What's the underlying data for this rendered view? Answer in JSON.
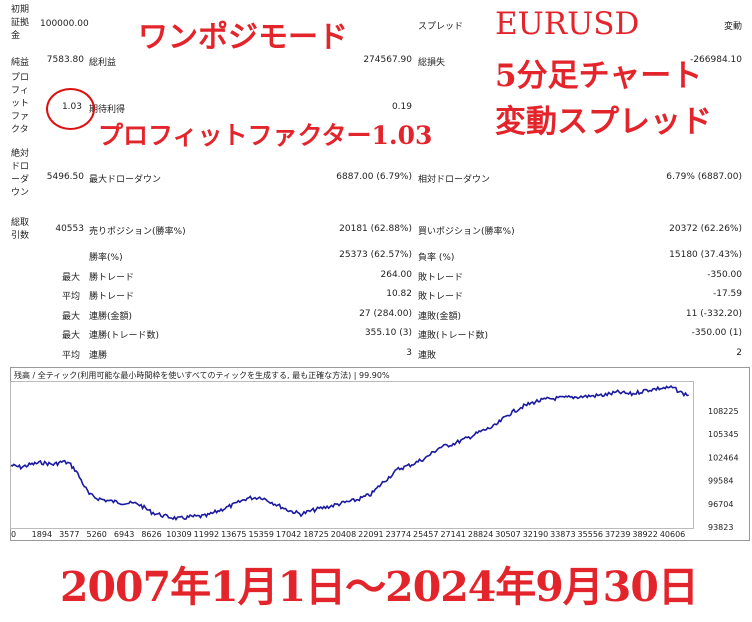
{
  "report": {
    "initial_deposit_label": "初期\n証拠\n金",
    "initial_deposit_value": "100000.00",
    "spread_label": "スプレッド",
    "spread_value": "変動",
    "net_profit_label": "純益",
    "net_profit_value": "7583.80",
    "gross_profit_label": "総利益",
    "gross_profit_value": "274567.90",
    "gross_loss_label": "総損失",
    "gross_loss_value": "-266984.10",
    "profit_factor_label": "プロ\nフィ\nット\nファ\nクタ",
    "profit_factor_value": "1.03",
    "expected_payoff_label": "期待利得",
    "expected_payoff_value": "0.19",
    "abs_drawdown_label": "絶対\nドロ\nーダ\nウン",
    "abs_drawdown_value": "5496.50",
    "max_drawdown_label": "最大ドローダウン",
    "max_drawdown_value": "6887.00 (6.79%)",
    "rel_drawdown_label": "相対ドローダウン",
    "rel_drawdown_value": "6.79% (6887.00)",
    "total_trades_label": "総取\n引数",
    "total_trades_value": "40553",
    "short_label": "売りポジション(勝率%)",
    "short_value": "20181 (62.88%)",
    "long_label": "買いポジション(勝率%)",
    "long_value": "20372 (62.26%)",
    "win_rate_label": "勝率(%)",
    "win_rate_value": "25373 (62.57%)",
    "loss_rate_label": "負率 (%)",
    "loss_rate_value": "15180 (37.43%)",
    "rows": [
      {
        "prefix": "最大",
        "left_label": "勝トレード",
        "left_value": "264.00",
        "right_label": "敗トレード",
        "right_value": "-350.00"
      },
      {
        "prefix": "平均",
        "left_label": "勝トレード",
        "left_value": "10.82",
        "right_label": "敗トレード",
        "right_value": "-17.59"
      },
      {
        "prefix": "最大",
        "left_label": "連勝(金額)",
        "left_value": "27 (284.00)",
        "right_label": "連敗(金額)",
        "right_value": "11 (-332.20)"
      },
      {
        "prefix": "最大",
        "left_label": "連勝(トレード数)",
        "left_value": "355.10 (3)",
        "right_label": "連敗(トレード数)",
        "right_value": "-350.00 (1)"
      },
      {
        "prefix": "平均",
        "left_label": "連勝",
        "left_value": "3",
        "right_label": "連敗",
        "right_value": "2"
      }
    ]
  },
  "overlay": {
    "mode": "ワンポジモード",
    "symbol": "EURUSD",
    "timeframe": "5分足チャート",
    "spread_type": "変動スプレッド",
    "pf_text": "プロフィットファクター1.03",
    "period": "2007年1月1日～2024年9月30日",
    "accent_color": "#e3242b"
  },
  "chart_data": {
    "type": "line",
    "title": "残高 / 全ティック(利用可能な最小時間枠を使いすべてのティックを生成する, 最も正確な方法) | 99.90%",
    "series_color": "#1a1aa0",
    "x_ticks": [
      "0",
      "1894",
      "3577",
      "5260",
      "6943",
      "8626",
      "10309",
      "11992",
      "13675",
      "15359",
      "17042",
      "18725",
      "20408",
      "22091",
      "23774",
      "25457",
      "27141",
      "28824",
      "30507",
      "32190",
      "33873",
      "35556",
      "37239",
      "38922",
      "40606"
    ],
    "y_ticks": [
      "108225",
      "105345",
      "102464",
      "99584",
      "96704",
      "93823"
    ],
    "ylim": [
      93823,
      109300
    ],
    "xlim": [
      0,
      41800
    ],
    "x": [
      0,
      600,
      1200,
      1894,
      2600,
      3200,
      3577,
      4000,
      4400,
      4800,
      5260,
      6000,
      6943,
      7800,
      8626,
      9400,
      10309,
      11000,
      11992,
      12800,
      13675,
      14500,
      15359,
      16200,
      17042,
      17800,
      18725,
      19500,
      20408,
      21200,
      22091,
      22900,
      23774,
      24600,
      25457,
      26300,
      27141,
      28000,
      28824,
      29700,
      30507,
      31300,
      32190,
      33000,
      33873,
      34700,
      35556,
      36400,
      37239,
      38100,
      38922,
      39700,
      40606,
      41200,
      41600
    ],
    "y": [
      100400,
      100200,
      100500,
      100700,
      100500,
      100800,
      100600,
      99800,
      98500,
      97300,
      96900,
      96600,
      96400,
      96300,
      95400,
      95000,
      94700,
      94900,
      95000,
      95600,
      96200,
      96900,
      97000,
      96300,
      95600,
      95200,
      95700,
      96000,
      96400,
      96700,
      97300,
      98700,
      100000,
      100500,
      101200,
      102300,
      102700,
      103300,
      104000,
      104600,
      105800,
      106600,
      107200,
      107500,
      107600,
      107700,
      107800,
      107900,
      108200,
      108000,
      108400,
      108600,
      108700,
      108100,
      107900
    ]
  }
}
